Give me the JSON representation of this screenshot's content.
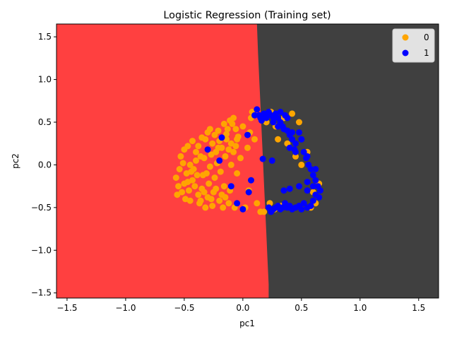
{
  "chart_data": {
    "type": "scatter",
    "title": "Logistic Regression (Training set)",
    "xlabel": "pc1",
    "ylabel": "pc2",
    "xlim": [
      -1.59,
      1.67
    ],
    "ylim": [
      -1.56,
      1.65
    ],
    "xticks": [
      -1.5,
      -1.0,
      -0.5,
      0.0,
      0.5,
      1.0,
      1.5
    ],
    "yticks": [
      -1.5,
      -1.0,
      -0.5,
      0.0,
      0.5,
      1.0,
      1.5
    ],
    "xtick_labels": [
      "−1.5",
      "−1.0",
      "−0.5",
      "0.0",
      "0.5",
      "1.0",
      "1.5"
    ],
    "ytick_labels": [
      "−1.5",
      "−1.0",
      "−0.5",
      "0.0",
      "0.5",
      "1.0",
      "1.5"
    ],
    "grid": false,
    "legend_position": "top-right",
    "regions": [
      {
        "class": "0",
        "color": "#ff4040"
      },
      {
        "class": "1",
        "color": "#404040"
      }
    ],
    "decision_boundary": [
      [
        0.12,
        1.65
      ],
      [
        0.13,
        1.3
      ],
      [
        0.14,
        1.0
      ],
      [
        0.15,
        0.7
      ],
      [
        0.16,
        0.4
      ],
      [
        0.17,
        0.1
      ],
      [
        0.18,
        -0.2
      ],
      [
        0.19,
        -0.5
      ],
      [
        0.2,
        -0.8
      ],
      [
        0.21,
        -1.1
      ],
      [
        0.22,
        -1.4
      ],
      [
        0.22,
        -1.56
      ]
    ],
    "series": [
      {
        "name": "0",
        "color": "#ffa500",
        "points": [
          [
            -0.57,
            -0.15
          ],
          [
            -0.55,
            -0.25
          ],
          [
            -0.52,
            -0.32
          ],
          [
            -0.5,
            -0.22
          ],
          [
            -0.48,
            -0.1
          ],
          [
            -0.46,
            -0.3
          ],
          [
            -0.45,
            -0.42
          ],
          [
            -0.43,
            -0.18
          ],
          [
            -0.42,
            -0.05
          ],
          [
            -0.4,
            0.05
          ],
          [
            -0.38,
            -0.35
          ],
          [
            -0.37,
            -0.45
          ],
          [
            -0.35,
            -0.28
          ],
          [
            -0.34,
            -0.12
          ],
          [
            -0.33,
            0.08
          ],
          [
            -0.32,
            -0.5
          ],
          [
            -0.3,
            -0.38
          ],
          [
            -0.29,
            -0.22
          ],
          [
            -0.28,
            -0.02
          ],
          [
            -0.27,
            0.12
          ],
          [
            -0.26,
            -0.48
          ],
          [
            -0.25,
            -0.32
          ],
          [
            -0.24,
            -0.15
          ],
          [
            -0.22,
            0.02
          ],
          [
            -0.21,
            0.2
          ],
          [
            -0.2,
            -0.42
          ],
          [
            -0.18,
            -0.35
          ],
          [
            -0.17,
            -0.5
          ],
          [
            -0.16,
            -0.25
          ],
          [
            -0.15,
            0.1
          ],
          [
            -0.14,
            0.3
          ],
          [
            -0.13,
            0.42
          ],
          [
            -0.12,
            -0.45
          ],
          [
            -0.1,
            0.0
          ],
          [
            -0.09,
            0.48
          ],
          [
            -0.08,
            0.55
          ],
          [
            -0.06,
            0.22
          ],
          [
            -0.05,
            -0.1
          ],
          [
            -0.04,
            0.33
          ],
          [
            -0.02,
            0.08
          ],
          [
            0.0,
            0.45
          ],
          [
            0.02,
            -0.5
          ],
          [
            0.04,
            0.2
          ],
          [
            0.05,
            -0.3
          ],
          [
            0.06,
            0.38
          ],
          [
            0.07,
            0.55
          ],
          [
            0.08,
            0.62
          ],
          [
            0.1,
            0.3
          ],
          [
            0.12,
            -0.45
          ],
          [
            0.15,
            -0.55
          ],
          [
            -0.53,
            0.1
          ],
          [
            -0.5,
            0.18
          ],
          [
            -0.47,
            0.22
          ],
          [
            -0.45,
            0.0
          ],
          [
            -0.43,
            0.28
          ],
          [
            -0.4,
            0.15
          ],
          [
            -0.38,
            0.22
          ],
          [
            -0.36,
            0.1
          ],
          [
            -0.35,
            0.32
          ],
          [
            -0.32,
            0.3
          ],
          [
            -0.3,
            0.38
          ],
          [
            -0.28,
            0.42
          ],
          [
            -0.26,
            0.25
          ],
          [
            -0.24,
            0.35
          ],
          [
            -0.23,
            0.15
          ],
          [
            -0.21,
            0.4
          ],
          [
            -0.2,
            0.28
          ],
          [
            -0.18,
            0.2
          ],
          [
            -0.16,
            0.48
          ],
          [
            -0.14,
            0.36
          ],
          [
            -0.12,
            0.18
          ],
          [
            -0.11,
            0.52
          ],
          [
            -0.1,
            0.25
          ],
          [
            -0.08,
            0.15
          ],
          [
            -0.06,
            0.42
          ],
          [
            -0.05,
            0.3
          ],
          [
            -0.56,
            -0.35
          ],
          [
            -0.54,
            -0.05
          ],
          [
            -0.51,
            0.02
          ],
          [
            -0.49,
            -0.4
          ],
          [
            -0.47,
            -0.2
          ],
          [
            -0.44,
            -0.08
          ],
          [
            -0.41,
            -0.25
          ],
          [
            -0.39,
            -0.12
          ],
          [
            -0.36,
            -0.42
          ],
          [
            -0.33,
            -0.32
          ],
          [
            -0.31,
            -0.1
          ],
          [
            -0.27,
            -0.4
          ],
          [
            -0.23,
            -0.28
          ],
          [
            -0.19,
            -0.08
          ],
          [
            -0.15,
            -0.38
          ],
          [
            -0.11,
            -0.3
          ],
          [
            -0.07,
            -0.5
          ],
          [
            0.24,
            0.62
          ],
          [
            0.28,
            0.45
          ],
          [
            0.3,
            0.3
          ],
          [
            0.35,
            0.55
          ],
          [
            0.38,
            0.25
          ],
          [
            0.42,
            0.6
          ],
          [
            0.48,
            0.5
          ],
          [
            0.5,
            0.0
          ],
          [
            0.58,
            -0.5
          ],
          [
            0.62,
            -0.45
          ],
          [
            0.65,
            -0.22
          ],
          [
            0.23,
            -0.45
          ],
          [
            0.27,
            -0.52
          ],
          [
            0.45,
            0.1
          ],
          [
            0.55,
            0.15
          ],
          [
            0.6,
            -0.32
          ],
          [
            0.18,
            -0.55
          ],
          [
            0.2,
            0.5
          ],
          [
            0.33,
            -0.48
          ]
        ]
      },
      {
        "name": "1",
        "color": "#0000ff",
        "points": [
          [
            0.12,
            0.65
          ],
          [
            0.14,
            0.58
          ],
          [
            0.16,
            0.52
          ],
          [
            0.18,
            0.6
          ],
          [
            0.2,
            0.55
          ],
          [
            0.22,
            0.62
          ],
          [
            0.24,
            0.58
          ],
          [
            0.26,
            0.5
          ],
          [
            0.28,
            0.6
          ],
          [
            0.3,
            0.55
          ],
          [
            0.32,
            0.5
          ],
          [
            0.34,
            0.45
          ],
          [
            0.36,
            0.58
          ],
          [
            0.38,
            0.4
          ],
          [
            0.4,
            0.35
          ],
          [
            0.42,
            0.3
          ],
          [
            0.45,
            0.25
          ],
          [
            0.48,
            0.38
          ],
          [
            0.5,
            0.3
          ],
          [
            0.52,
            0.15
          ],
          [
            0.54,
            0.08
          ],
          [
            0.56,
            0.0
          ],
          [
            0.58,
            -0.05
          ],
          [
            0.6,
            -0.12
          ],
          [
            0.62,
            -0.18
          ],
          [
            0.64,
            -0.25
          ],
          [
            0.66,
            -0.3
          ],
          [
            0.65,
            -0.38
          ],
          [
            0.62,
            -0.35
          ],
          [
            0.6,
            -0.42
          ],
          [
            0.58,
            -0.48
          ],
          [
            0.55,
            -0.5
          ],
          [
            0.52,
            -0.45
          ],
          [
            0.5,
            -0.52
          ],
          [
            0.48,
            -0.48
          ],
          [
            0.45,
            -0.5
          ],
          [
            0.42,
            -0.52
          ],
          [
            0.4,
            -0.48
          ],
          [
            0.38,
            -0.5
          ],
          [
            0.36,
            -0.45
          ],
          [
            0.34,
            -0.5
          ],
          [
            0.32,
            -0.52
          ],
          [
            0.3,
            -0.48
          ],
          [
            0.28,
            -0.5
          ],
          [
            0.26,
            -0.52
          ],
          [
            0.24,
            -0.55
          ],
          [
            0.22,
            -0.5
          ],
          [
            -0.3,
            0.18
          ],
          [
            -0.2,
            0.05
          ],
          [
            -0.18,
            0.32
          ],
          [
            -0.1,
            -0.25
          ],
          [
            -0.05,
            -0.45
          ],
          [
            0.05,
            -0.32
          ],
          [
            0.07,
            -0.18
          ],
          [
            0.04,
            0.35
          ],
          [
            0.0,
            -0.52
          ],
          [
            0.1,
            0.58
          ],
          [
            0.2,
            0.58
          ],
          [
            0.17,
            0.07
          ],
          [
            0.25,
            0.05
          ],
          [
            0.35,
            -0.3
          ],
          [
            0.4,
            -0.28
          ],
          [
            0.35,
            0.42
          ],
          [
            0.4,
            0.2
          ],
          [
            0.45,
            0.15
          ],
          [
            0.5,
            0.3
          ],
          [
            0.55,
            0.1
          ],
          [
            0.55,
            -0.3
          ],
          [
            0.6,
            -0.25
          ],
          [
            0.48,
            -0.25
          ],
          [
            0.44,
            0.18
          ],
          [
            0.55,
            -0.2
          ],
          [
            0.62,
            -0.05
          ],
          [
            0.42,
            0.38
          ],
          [
            0.3,
            0.45
          ],
          [
            0.15,
            0.55
          ],
          [
            0.26,
            0.55
          ],
          [
            0.32,
            0.62
          ],
          [
            0.38,
            0.55
          ]
        ]
      }
    ]
  }
}
